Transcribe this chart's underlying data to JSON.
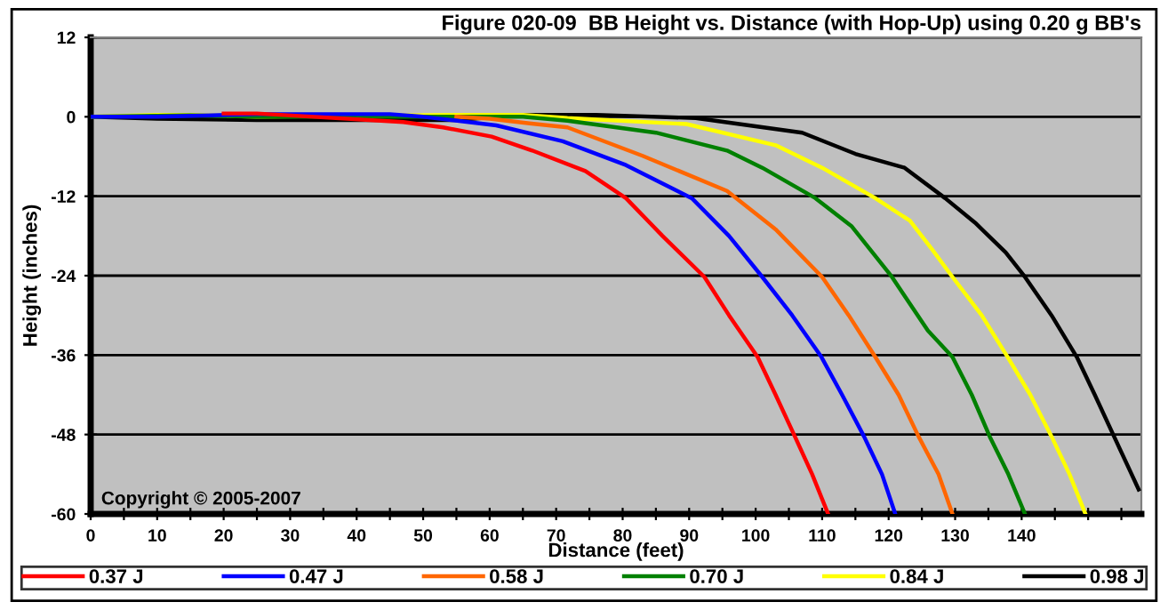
{
  "chart_data": {
    "type": "line",
    "title": "Figure 020-09  BB Height vs. Distance (with Hop-Up) using 0.20 g BB's",
    "xlabel": "Distance (feet)",
    "ylabel": "Height (inches)",
    "annotations": [
      "Copyright © 2005-2007"
    ],
    "xlim": [
      0,
      158
    ],
    "ylim": [
      -60,
      12
    ],
    "xticks": [
      0,
      {
        "value": 5,
        "label": null
      },
      10,
      {
        "value": 15,
        "label": null
      },
      20,
      {
        "value": 25,
        "label": null
      },
      30,
      {
        "value": 35,
        "label": null
      },
      40,
      {
        "value": 45,
        "label": null
      },
      50,
      {
        "value": 55,
        "label": null
      },
      60,
      {
        "value": 65,
        "label": null
      },
      70,
      {
        "value": 75,
        "label": null
      },
      80,
      {
        "value": 85,
        "label": null
      },
      90,
      {
        "value": 95,
        "label": null
      },
      100,
      {
        "value": 105,
        "label": null
      },
      110,
      {
        "value": 115,
        "label": null
      },
      120,
      {
        "value": 125,
        "label": null
      },
      130,
      {
        "value": 135,
        "label": null
      },
      140,
      {
        "value": 145,
        "label": null
      },
      {
        "value": 150,
        "label": null
      },
      {
        "value": 155,
        "label": null
      }
    ],
    "yticks": [
      12,
      0,
      -12,
      -24,
      -36,
      -48,
      -60
    ],
    "grid": "y",
    "legend": "bottom",
    "marker": "none",
    "line_style": "solid",
    "series": [
      {
        "name": "0.37 J",
        "color": "#ff0000",
        "x": [
          20,
          25,
          47,
          53,
          60.3,
          66.4,
          74.4,
          80.5,
          86,
          92.3,
          96,
          100.3,
          103,
          105.9,
          108.5,
          110.9
        ],
        "values": [
          0.5,
          0.5,
          -0.8,
          -1.6,
          -3,
          -5.1,
          -8.2,
          -12.3,
          -18,
          -24.2,
          -30,
          -36.3,
          -42,
          -48.3,
          -54,
          -60
        ]
      },
      {
        "name": "0.47 J",
        "color": "#0000ff",
        "x": [
          0,
          10,
          25,
          45,
          50,
          61,
          71,
          80.5,
          90.4,
          96,
          101,
          105.5,
          109.9,
          113,
          116.3,
          119,
          121
        ],
        "values": [
          0,
          0,
          0.4,
          0.4,
          0,
          -1.3,
          -3.7,
          -7.3,
          -12.3,
          -18,
          -24.2,
          -30,
          -36.3,
          -42,
          -48.3,
          -54,
          -60
        ]
      },
      {
        "name": "0.58 J",
        "color": "#ff6600",
        "x": [
          55,
          60,
          66,
          71.7,
          83,
          95.7,
          103,
          110,
          114,
          118,
          121.5,
          124.5,
          127.5,
          129.6
        ],
        "values": [
          0,
          -0.3,
          -1,
          -1.6,
          -5.9,
          -11.2,
          -17,
          -24.2,
          -30,
          -36.3,
          -42,
          -48.3,
          -54,
          -60
        ]
      },
      {
        "name": "0.70 J",
        "color": "#008000",
        "x": [
          0,
          15,
          25,
          50,
          65,
          71.7,
          85,
          95.7,
          101,
          109,
          114.4,
          120.5,
          125.9,
          129.6,
          132.5,
          135.2,
          138,
          140.5
        ],
        "values": [
          0,
          0.2,
          0,
          0,
          0,
          -0.6,
          -2.4,
          -5.1,
          -7.7,
          -12.3,
          -16.5,
          -24.2,
          -32.3,
          -36.3,
          -42,
          -48.3,
          -54,
          -60
        ]
      },
      {
        "name": "0.84 J",
        "color": "#ffff00",
        "x": [
          0,
          10,
          15,
          25,
          55,
          65,
          71.7,
          89.6,
          103,
          110,
          118,
          123.2,
          126.5,
          129.6,
          134,
          137.9,
          141.3,
          144.5,
          147.2,
          149.6
        ],
        "values": [
          0,
          0.3,
          0.3,
          0,
          0.3,
          0.3,
          -0.2,
          -1.1,
          -4.3,
          -7.7,
          -12.3,
          -15.7,
          -20,
          -24.2,
          -30,
          -36.3,
          -42,
          -48.3,
          -54,
          -60
        ]
      },
      {
        "name": "0.98 J",
        "color": "#000000",
        "x": [
          0,
          10,
          25,
          55,
          65,
          76,
          91,
          107,
          115,
          122.4,
          128.5,
          133,
          137.6,
          140.5,
          144.5,
          148.3,
          151,
          153.9,
          157.6
        ],
        "values": [
          0,
          -0.3,
          -0.5,
          -0.5,
          0.3,
          0.3,
          -0.2,
          -2.4,
          -5.6,
          -7.7,
          -12.3,
          -16,
          -20.5,
          -24.2,
          -30,
          -36.3,
          -42,
          -48.3,
          -56.3
        ]
      }
    ]
  }
}
